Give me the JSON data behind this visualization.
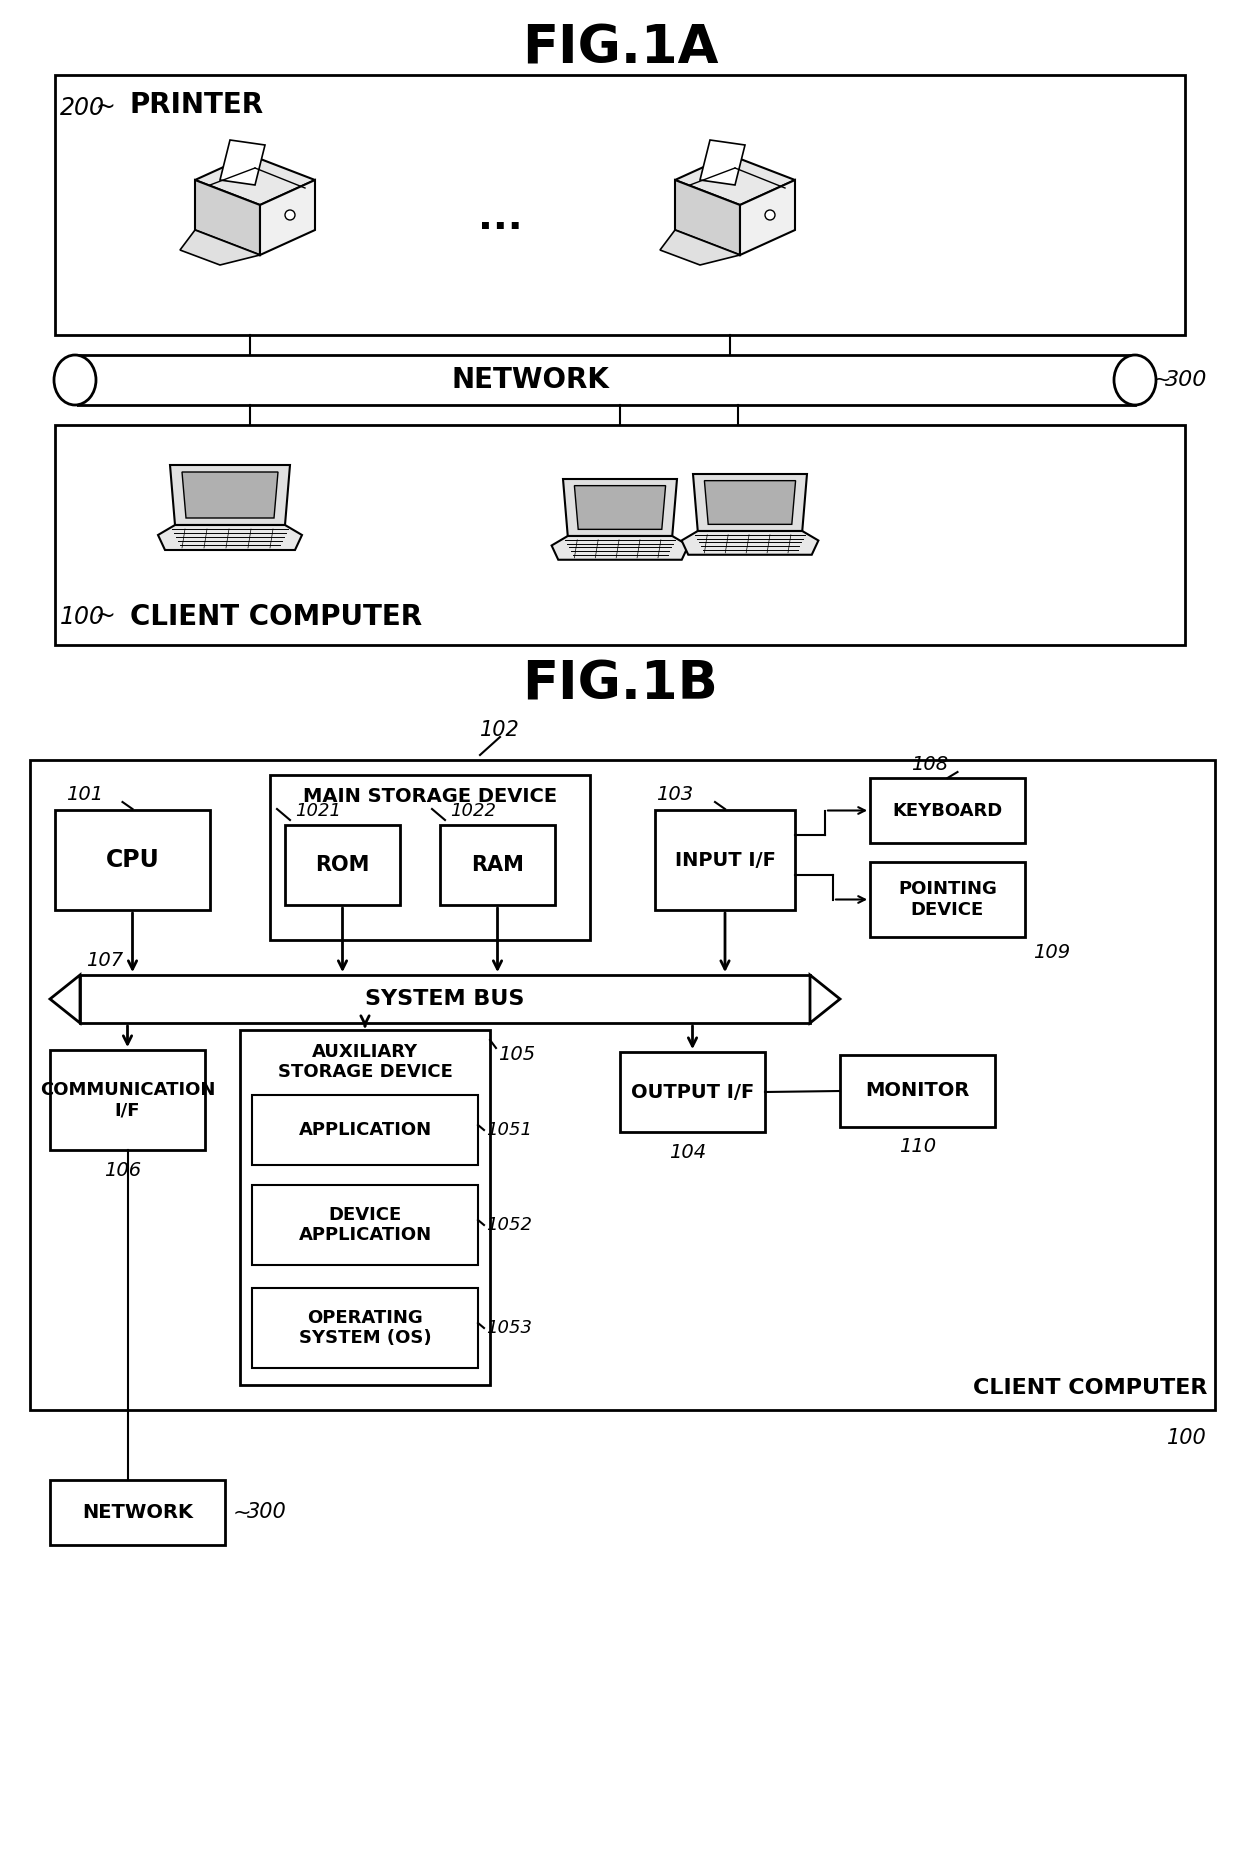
{
  "fig1a_title": "FIG.1A",
  "fig1b_title": "FIG.1B",
  "bg_color": "#ffffff",
  "text_color": "#000000",
  "label_200": "200",
  "label_100": "100",
  "label_300": "300",
  "label_102": "102",
  "label_101": "101",
  "label_107": "107",
  "label_103": "103",
  "label_108": "108",
  "label_109": "109",
  "label_104": "104",
  "label_110": "110",
  "label_105": "105",
  "label_106": "106",
  "label_1021": "1021",
  "label_1022": "1022",
  "label_1051": "1051",
  "label_1052": "1052",
  "label_1053": "1053",
  "text_printer": "PRINTER",
  "text_network": "NETWORK",
  "text_client_computer": "CLIENT COMPUTER",
  "text_main_storage": "MAIN STORAGE DEVICE",
  "text_rom": "ROM",
  "text_ram": "RAM",
  "text_cpu": "CPU",
  "text_input_if": "INPUT I/F",
  "text_keyboard": "KEYBOARD",
  "text_pointing_device": "POINTING\nDEVICE",
  "text_system_bus": "SYSTEM BUS",
  "text_comm_if": "COMMUNICATION\nI/F",
  "text_aux_storage": "AUXILIARY\nSTORAGE DEVICE",
  "text_output_if": "OUTPUT I/F",
  "text_monitor": "MONITOR",
  "text_application": "APPLICATION",
  "text_device_application": "DEVICE\nAPPLICATION",
  "text_operating_system": "OPERATING\nSYSTEM (OS)",
  "text_client_computer_label": "CLIENT COMPUTER",
  "text_network_bottom": "NETWORK"
}
